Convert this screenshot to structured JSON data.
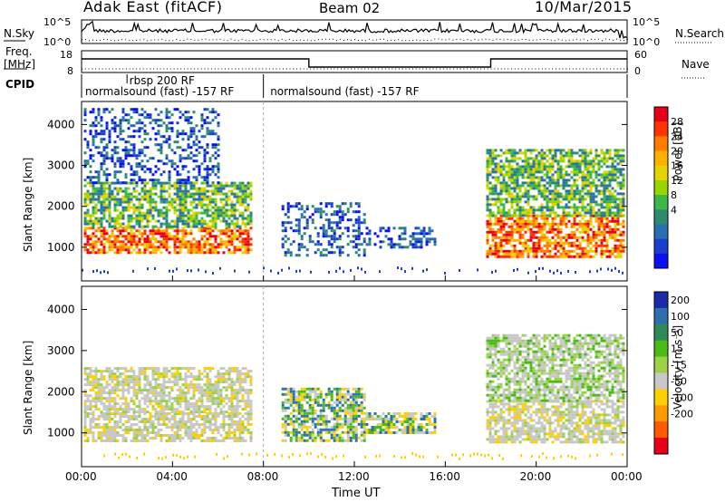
{
  "header": {
    "station": "Adak East (fitACF)",
    "beam": "Beam 02",
    "date": "10/Mar/2015"
  },
  "side_labels": {
    "nsky": "N.Sky",
    "nsearch": "N.Search",
    "freq_line1": "Freq.",
    "freq_line2": "[MHz]",
    "nave": "Nave",
    "cpid": "CPID"
  },
  "noise_axis": {
    "left_ticks": [
      "10^5",
      "10^0"
    ],
    "right_ticks": [
      "10^5",
      "10^0"
    ]
  },
  "freq_axis": {
    "left_ticks": [
      "18",
      "8"
    ],
    "right_ticks": [
      "60",
      "0"
    ]
  },
  "cpid_labels": [
    {
      "text": "normalsound (fast) -157 RF",
      "row": 2
    },
    {
      "text": "rbsp 200 RF",
      "row": 1
    },
    {
      "text": "normalsound (fast) -157 RF",
      "row": 2
    }
  ],
  "xaxis": {
    "label": "Time UT",
    "ticks": [
      "00:00",
      "04:00",
      "08:00",
      "12:00",
      "16:00",
      "20:00",
      "00:00"
    ]
  },
  "chart_data": [
    {
      "type": "heatmap",
      "panel": "power",
      "ylabel": "Slant Range [km]",
      "yticks": [
        1000,
        2000,
        3000,
        4000
      ],
      "ylim": [
        180,
        4560
      ],
      "xlim_hours": [
        0,
        24
      ],
      "colorbar_label": "Power [dB]",
      "colorbar_ticks": [
        28,
        24,
        20,
        16,
        12,
        8,
        4
      ],
      "colorbar_colors": [
        "#e8001a",
        "#ff3300",
        "#ff7a00",
        "#ffb000",
        "#e6d400",
        "#9ad400",
        "#3cb84a",
        "#2e8b6e",
        "#2a6fb0",
        "#1a3fd0",
        "#0a10f0"
      ],
      "echo_bands": [
        {
          "hours": [
            0.1,
            7.5
          ],
          "range_km": [
            850,
            1500
          ],
          "level": "high"
        },
        {
          "hours": [
            0.1,
            7.5
          ],
          "range_km": [
            1500,
            2600
          ],
          "level": "mid"
        },
        {
          "hours": [
            0.1,
            6.0
          ],
          "range_km": [
            2600,
            4400
          ],
          "level": "low"
        },
        {
          "hours": [
            8.8,
            12.5
          ],
          "range_km": [
            800,
            2100
          ],
          "level": "low"
        },
        {
          "hours": [
            12.5,
            15.5
          ],
          "range_km": [
            1000,
            1500
          ],
          "level": "low"
        },
        {
          "hours": [
            17.8,
            23.8
          ],
          "range_km": [
            800,
            1800
          ],
          "level": "high"
        },
        {
          "hours": [
            17.8,
            23.8
          ],
          "range_km": [
            1800,
            3400
          ],
          "level": "mid"
        }
      ]
    },
    {
      "type": "heatmap",
      "panel": "velocity",
      "ylabel": "Slant Range [km]",
      "yticks": [
        1000,
        2000,
        3000,
        4000
      ],
      "ylim": [
        180,
        4560
      ],
      "xlim_hours": [
        0,
        24
      ],
      "colorbar_label": "Velocity [m s⁻¹]",
      "colorbar_ticks": [
        200,
        100,
        50,
        15,
        -15,
        -50,
        -100,
        -200
      ],
      "colorbar_colors": [
        "#1a2aa8",
        "#2e6fb0",
        "#2e8b57",
        "#4cbb17",
        "#9bd24a",
        "#c8c8c8",
        "#ffd000",
        "#ff9900",
        "#ff5a00",
        "#e8001a"
      ],
      "echo_bands": [
        {
          "hours": [
            0.1,
            7.5
          ],
          "range_km": [
            800,
            1500
          ],
          "level": "grey"
        },
        {
          "hours": [
            0.1,
            7.5
          ],
          "range_km": [
            1500,
            2600
          ],
          "level": "grey"
        },
        {
          "hours": [
            8.8,
            12.5
          ],
          "range_km": [
            800,
            2100
          ],
          "level": "mixed"
        },
        {
          "hours": [
            12.5,
            15.5
          ],
          "range_km": [
            1000,
            1500
          ],
          "level": "mixed"
        },
        {
          "hours": [
            17.8,
            23.8
          ],
          "range_km": [
            800,
            1800
          ],
          "level": "grey"
        },
        {
          "hours": [
            17.8,
            23.8
          ],
          "range_km": [
            1800,
            3400
          ],
          "level": "greenish"
        }
      ]
    }
  ]
}
